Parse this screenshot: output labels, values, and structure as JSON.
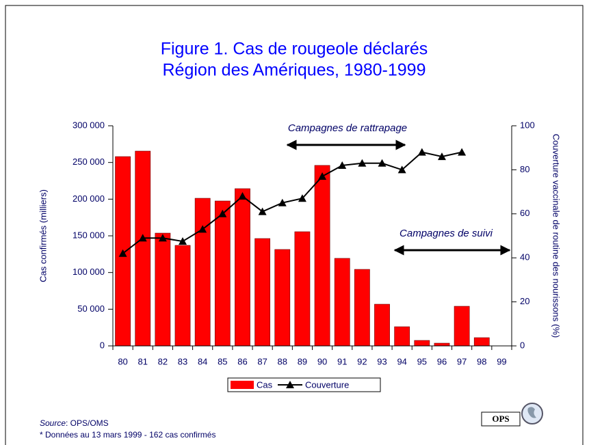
{
  "chart_data": {
    "type": "bar+line",
    "title": [
      "Figure 1.  Cas de rougeole déclarés",
      "Région des Amériques, 1980-1999"
    ],
    "y_label": "Cas confirmés (milliers)",
    "y2_label": "Couverture vaccinale de routine des nourissons (%)",
    "annotations": [
      "Campagnes de rattrapage",
      "Campagnes de suivi"
    ],
    "categories": [
      "80",
      "81",
      "82",
      "83",
      "84",
      "85",
      "86",
      "87",
      "88",
      "89",
      "90",
      "91",
      "92",
      "93",
      "94",
      "95",
      "96",
      "97",
      "98",
      "99"
    ],
    "series": [
      {
        "name": "Cas",
        "color": "#ff0000",
        "values": [
          258000,
          265500,
          153700,
          137000,
          201200,
          197500,
          214300,
          146300,
          131400,
          155600,
          246000,
          119300,
          104300,
          56800,
          26100,
          7450,
          3700,
          54000,
          11200,
          162
        ]
      },
      {
        "name": "Couverture",
        "color": "#000000",
        "axis": "y2",
        "values": [
          42,
          49,
          49,
          47.5,
          53,
          60,
          68,
          61,
          65,
          67,
          77,
          82,
          83,
          83,
          80,
          88,
          86,
          88,
          null,
          null
        ]
      }
    ],
    "ylim": [
      0,
      300000
    ],
    "yticks": [
      0,
      {
        "value": 50000,
        "label": "50 000"
      },
      {
        "value": 100000,
        "label": "100 000"
      },
      {
        "value": 150000,
        "label": "150 000"
      },
      {
        "value": 200000,
        "label": "200 000"
      },
      {
        "value": 250000,
        "label": "250 000"
      },
      {
        "value": 300000,
        "label": "300 000"
      }
    ],
    "y2lim": [
      0,
      100
    ],
    "y2ticks": [
      0,
      20,
      40,
      60,
      80,
      100
    ],
    "source_label": "Source",
    "source_text": ": OPS/OMS",
    "footnote": "* Données au 13 mars 1999 - 162 cas confirmés",
    "logo": "OPS"
  }
}
